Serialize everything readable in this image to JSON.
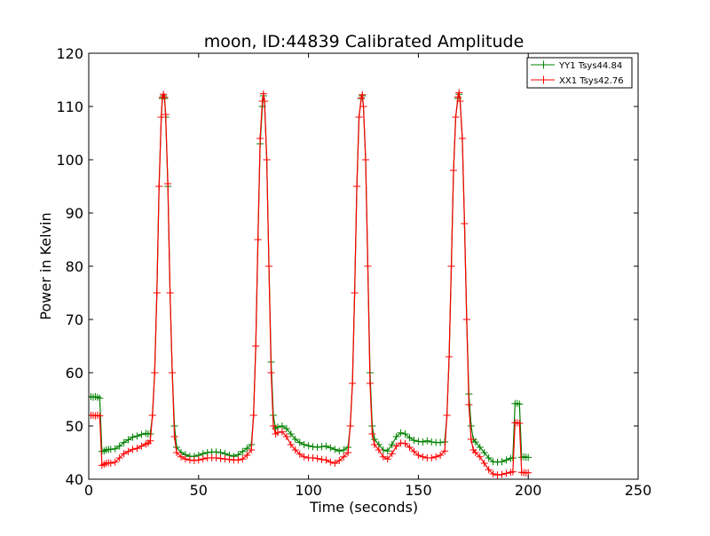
{
  "chart_data": {
    "type": "line",
    "title": "moon, ID:44839 Calibrated Amplitude",
    "xlabel": "Time (seconds)",
    "ylabel": "Power in Kelvin",
    "xlim": [
      0,
      250
    ],
    "ylim": [
      40,
      120
    ],
    "xticks": [
      0,
      50,
      100,
      150,
      200,
      250
    ],
    "yticks": [
      40,
      50,
      60,
      70,
      80,
      90,
      100,
      110,
      120
    ],
    "grid": false,
    "legend": "top-right",
    "series": [
      {
        "name": "YY1 Tsys44.84",
        "color": "#008000",
        "marker": "plus",
        "points": [
          [
            0,
            55.5
          ],
          [
            1,
            55.5
          ],
          [
            2,
            55.4
          ],
          [
            3,
            55.5
          ],
          [
            4,
            55.4
          ],
          [
            5,
            55.2
          ],
          [
            6,
            45.2
          ],
          [
            7,
            45.3
          ],
          [
            8,
            45.5
          ],
          [
            9,
            45.6
          ],
          [
            10,
            45.6
          ],
          [
            12,
            45.7
          ],
          [
            14,
            46.2
          ],
          [
            16,
            46.9
          ],
          [
            18,
            47.4
          ],
          [
            20,
            47.9
          ],
          [
            22,
            48.1
          ],
          [
            24,
            48.4
          ],
          [
            26,
            48.6
          ],
          [
            27,
            48.5
          ],
          [
            28,
            48.5
          ],
          [
            29,
            52.0
          ],
          [
            30,
            60.0
          ],
          [
            31,
            75.0
          ],
          [
            32,
            95.0
          ],
          [
            33,
            108.0
          ],
          [
            33.5,
            111.5
          ],
          [
            34,
            112.0
          ],
          [
            34.5,
            111.5
          ],
          [
            35,
            108.0
          ],
          [
            36,
            95.0
          ],
          [
            37,
            75.0
          ],
          [
            38,
            60.0
          ],
          [
            39,
            50.0
          ],
          [
            40,
            46.0
          ],
          [
            42,
            45.0
          ],
          [
            44,
            44.6
          ],
          [
            46,
            44.3
          ],
          [
            48,
            44.3
          ],
          [
            50,
            44.5
          ],
          [
            52,
            44.8
          ],
          [
            54,
            45.0
          ],
          [
            56,
            45.1
          ],
          [
            58,
            45.1
          ],
          [
            60,
            45.0
          ],
          [
            62,
            44.8
          ],
          [
            64,
            44.5
          ],
          [
            66,
            44.3
          ],
          [
            68,
            44.6
          ],
          [
            70,
            45.2
          ],
          [
            72,
            45.8
          ],
          [
            74,
            46.5
          ],
          [
            75,
            52.0
          ],
          [
            76,
            65.0
          ],
          [
            77,
            85.0
          ],
          [
            78,
            103.0
          ],
          [
            79,
            110.0
          ],
          [
            79.5,
            112.0
          ],
          [
            80,
            111.0
          ],
          [
            81,
            100.0
          ],
          [
            82,
            80.0
          ],
          [
            83,
            62.0
          ],
          [
            84,
            52.0
          ],
          [
            85,
            49.5
          ],
          [
            86,
            49.8
          ],
          [
            88,
            50.0
          ],
          [
            90,
            49.5
          ],
          [
            92,
            48.5
          ],
          [
            94,
            47.5
          ],
          [
            96,
            46.9
          ],
          [
            98,
            46.5
          ],
          [
            100,
            46.3
          ],
          [
            102,
            46.1
          ],
          [
            104,
            46.0
          ],
          [
            106,
            46.1
          ],
          [
            108,
            46.2
          ],
          [
            110,
            45.9
          ],
          [
            112,
            45.6
          ],
          [
            114,
            45.3
          ],
          [
            116,
            45.5
          ],
          [
            118,
            46.0
          ],
          [
            119,
            50.0
          ],
          [
            120,
            58.0
          ],
          [
            121,
            75.0
          ],
          [
            122,
            95.0
          ],
          [
            123,
            108.0
          ],
          [
            124,
            111.5
          ],
          [
            124.5,
            112.0
          ],
          [
            125,
            110.0
          ],
          [
            126,
            100.0
          ],
          [
            127,
            80.0
          ],
          [
            128,
            60.0
          ],
          [
            129,
            50.0
          ],
          [
            130,
            47.5
          ],
          [
            132,
            46.5
          ],
          [
            134,
            45.5
          ],
          [
            136,
            45.3
          ],
          [
            138,
            46.5
          ],
          [
            140,
            48.0
          ],
          [
            142,
            48.7
          ],
          [
            144,
            48.5
          ],
          [
            146,
            47.8
          ],
          [
            148,
            47.3
          ],
          [
            150,
            47.1
          ],
          [
            152,
            47.0
          ],
          [
            154,
            47.2
          ],
          [
            156,
            47.0
          ],
          [
            158,
            46.9
          ],
          [
            160,
            46.9
          ],
          [
            162,
            47.0
          ],
          [
            163,
            52.0
          ],
          [
            164,
            63.0
          ],
          [
            165,
            80.0
          ],
          [
            166,
            98.0
          ],
          [
            167,
            108.0
          ],
          [
            168,
            111.5
          ],
          [
            168.5,
            112.3
          ],
          [
            169,
            111.0
          ],
          [
            170,
            104.0
          ],
          [
            171,
            88.0
          ],
          [
            172,
            70.0
          ],
          [
            173,
            56.0
          ],
          [
            174,
            50.0
          ],
          [
            175,
            47.5
          ],
          [
            176,
            47.0
          ],
          [
            178,
            46.0
          ],
          [
            180,
            45.0
          ],
          [
            182,
            44.0
          ],
          [
            184,
            43.3
          ],
          [
            186,
            43.2
          ],
          [
            188,
            43.3
          ],
          [
            190,
            43.6
          ],
          [
            192,
            43.9
          ],
          [
            193,
            44.0
          ],
          [
            194,
            54.2
          ],
          [
            195,
            54.2
          ],
          [
            196,
            54.1
          ],
          [
            197,
            44.1
          ],
          [
            198,
            44.2
          ],
          [
            199,
            44.1
          ],
          [
            200,
            44.1
          ]
        ]
      },
      {
        "name": "XX1 Tsys42.76",
        "color": "#ff0000",
        "marker": "plus",
        "points": [
          [
            0,
            52.0
          ],
          [
            1,
            52.0
          ],
          [
            2,
            52.0
          ],
          [
            3,
            51.9
          ],
          [
            4,
            52.0
          ],
          [
            5,
            51.9
          ],
          [
            6,
            42.6
          ],
          [
            7,
            42.8
          ],
          [
            8,
            43.0
          ],
          [
            9,
            43.1
          ],
          [
            10,
            43.0
          ],
          [
            12,
            43.2
          ],
          [
            14,
            44.0
          ],
          [
            16,
            44.8
          ],
          [
            18,
            45.2
          ],
          [
            20,
            45.6
          ],
          [
            22,
            45.8
          ],
          [
            24,
            46.2
          ],
          [
            26,
            46.6
          ],
          [
            27,
            46.8
          ],
          [
            28,
            47.2
          ],
          [
            29,
            52.0
          ],
          [
            30,
            60.0
          ],
          [
            31,
            75.0
          ],
          [
            32,
            95.0
          ],
          [
            33,
            108.0
          ],
          [
            33.5,
            111.7
          ],
          [
            34,
            112.3
          ],
          [
            34.5,
            111.7
          ],
          [
            35,
            108.5
          ],
          [
            36,
            95.5
          ],
          [
            37,
            75.0
          ],
          [
            38,
            60.0
          ],
          [
            39,
            48.0
          ],
          [
            40,
            45.0
          ],
          [
            42,
            44.2
          ],
          [
            44,
            43.8
          ],
          [
            46,
            43.6
          ],
          [
            48,
            43.5
          ],
          [
            50,
            43.6
          ],
          [
            52,
            43.8
          ],
          [
            54,
            44.0
          ],
          [
            56,
            44.0
          ],
          [
            58,
            44.0
          ],
          [
            60,
            43.9
          ],
          [
            62,
            43.8
          ],
          [
            64,
            43.7
          ],
          [
            66,
            43.6
          ],
          [
            68,
            43.6
          ],
          [
            70,
            43.8
          ],
          [
            72,
            44.5
          ],
          [
            74,
            45.5
          ],
          [
            75,
            52.0
          ],
          [
            76,
            65.0
          ],
          [
            77,
            85.0
          ],
          [
            78,
            104.0
          ],
          [
            79,
            111.0
          ],
          [
            79.5,
            112.4
          ],
          [
            80,
            111.0
          ],
          [
            81,
            100.0
          ],
          [
            82,
            80.0
          ],
          [
            83,
            60.0
          ],
          [
            84,
            50.0
          ],
          [
            85,
            48.5
          ],
          [
            86,
            48.8
          ],
          [
            88,
            48.9
          ],
          [
            90,
            48.0
          ],
          [
            92,
            46.5
          ],
          [
            94,
            45.5
          ],
          [
            96,
            44.7
          ],
          [
            98,
            44.2
          ],
          [
            100,
            44.0
          ],
          [
            102,
            44.0
          ],
          [
            104,
            43.9
          ],
          [
            106,
            43.7
          ],
          [
            108,
            43.6
          ],
          [
            110,
            43.2
          ],
          [
            112,
            43.0
          ],
          [
            114,
            43.5
          ],
          [
            116,
            44.2
          ],
          [
            118,
            45.0
          ],
          [
            119,
            50.0
          ],
          [
            120,
            58.0
          ],
          [
            121,
            75.0
          ],
          [
            122,
            95.0
          ],
          [
            123,
            108.0
          ],
          [
            124,
            111.6
          ],
          [
            124.5,
            112.2
          ],
          [
            125,
            110.0
          ],
          [
            126,
            100.0
          ],
          [
            127,
            80.0
          ],
          [
            128,
            58.0
          ],
          [
            129,
            48.5
          ],
          [
            130,
            46.5
          ],
          [
            132,
            45.5
          ],
          [
            134,
            44.2
          ],
          [
            136,
            43.8
          ],
          [
            138,
            44.8
          ],
          [
            140,
            46.2
          ],
          [
            142,
            46.8
          ],
          [
            144,
            46.7
          ],
          [
            146,
            46.0
          ],
          [
            148,
            45.2
          ],
          [
            150,
            44.5
          ],
          [
            152,
            44.2
          ],
          [
            154,
            44.0
          ],
          [
            156,
            44.0
          ],
          [
            158,
            44.2
          ],
          [
            160,
            44.5
          ],
          [
            162,
            45.3
          ],
          [
            163,
            52.0
          ],
          [
            164,
            63.0
          ],
          [
            165,
            80.0
          ],
          [
            166,
            98.0
          ],
          [
            167,
            108.0
          ],
          [
            168,
            111.8
          ],
          [
            168.5,
            112.6
          ],
          [
            169,
            111.0
          ],
          [
            170,
            104.0
          ],
          [
            171,
            88.0
          ],
          [
            172,
            70.0
          ],
          [
            173,
            54.0
          ],
          [
            174,
            47.5
          ],
          [
            175,
            45.5
          ],
          [
            176,
            45.0
          ],
          [
            178,
            44.2
          ],
          [
            180,
            43.0
          ],
          [
            182,
            41.8
          ],
          [
            184,
            41.0
          ],
          [
            186,
            40.8
          ],
          [
            188,
            40.9
          ],
          [
            190,
            41.1
          ],
          [
            192,
            41.3
          ],
          [
            193,
            41.4
          ],
          [
            194,
            50.6
          ],
          [
            195,
            50.6
          ],
          [
            196,
            50.5
          ],
          [
            197,
            41.3
          ],
          [
            198,
            41.2
          ],
          [
            199,
            41.2
          ],
          [
            200,
            41.2
          ]
        ]
      }
    ]
  }
}
